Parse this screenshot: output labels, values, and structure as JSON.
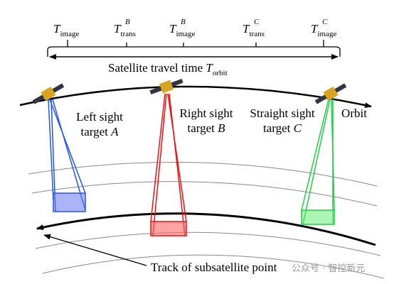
{
  "timeline": {
    "labels": [
      {
        "base": "T",
        "sub": "image"
      },
      {
        "base": "T",
        "sub": "trans",
        "sup": "B"
      },
      {
        "base": "T",
        "sub": "image",
        "sup": "B"
      },
      {
        "base": "T",
        "sub": "trans",
        "sup": "C"
      },
      {
        "base": "T",
        "sub": "image",
        "sup": "C"
      }
    ],
    "caption": "Satellite travel time",
    "caption_var": "T",
    "caption_sub": "orbit"
  },
  "targets": [
    {
      "line1": "Left sight",
      "line2": "target",
      "letter": "A"
    },
    {
      "line1": "Right sight",
      "line2": "target",
      "letter": "B"
    },
    {
      "line1": "Straight sight",
      "line2": "target",
      "letter": "C"
    }
  ],
  "orbit_label": "Orbit",
  "track_label": "Track of subsatellite point",
  "watermark": "公众号 · 智控新元"
}
